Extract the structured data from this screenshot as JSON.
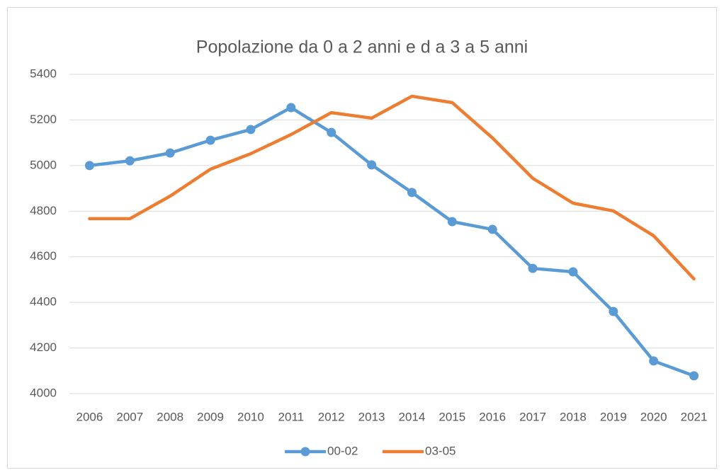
{
  "chart_data": {
    "type": "line",
    "title": "Popolazione da 0 a 2 anni e d a 3 a 5 anni",
    "categories": [
      "2006",
      "2007",
      "2008",
      "2009",
      "2010",
      "2011",
      "2012",
      "2013",
      "2014",
      "2015",
      "2016",
      "2017",
      "2018",
      "2019",
      "2020",
      "2021"
    ],
    "series": [
      {
        "name": "00-02",
        "color": "#5b9bd5",
        "markers": true,
        "values": [
          5000,
          5021,
          5055,
          5111,
          5158,
          5254,
          5145,
          5003,
          4882,
          4754,
          4720,
          4549,
          4534,
          4360,
          4143,
          4078
        ]
      },
      {
        "name": "03-05",
        "color": "#ed7d31",
        "markers": false,
        "values": [
          4767,
          4767,
          4866,
          4984,
          5052,
          5136,
          5232,
          5208,
          5304,
          5276,
          5121,
          4944,
          4835,
          4801,
          4692,
          4503
        ]
      }
    ],
    "ylim": [
      4000,
      5400
    ],
    "yticks": [
      4000,
      4200,
      4400,
      4600,
      4800,
      5000,
      5200,
      5400
    ],
    "grid": true,
    "legend": "bottom"
  }
}
